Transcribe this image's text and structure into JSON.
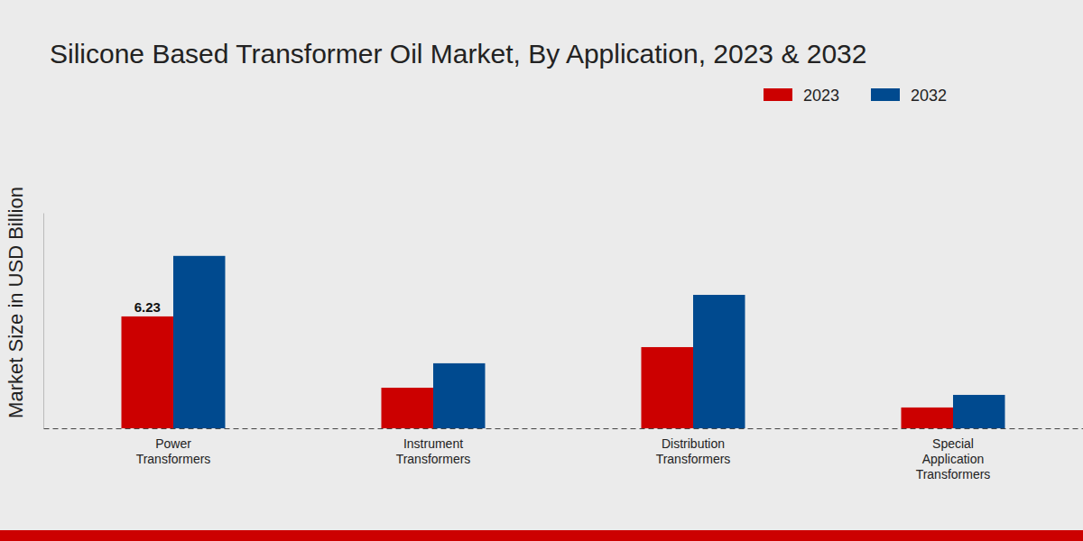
{
  "chart_data": {
    "type": "bar",
    "title": "Silicone Based Transformer Oil Market, By Application, 2023 & 2032",
    "y_label": "Market Size in USD Billion",
    "categories": [
      "Power Transformers",
      "Instrument Transformers",
      "Distribution Transformers",
      "Special Application Transformers"
    ],
    "series": [
      {
        "name": "2023",
        "color": "#cc0000",
        "values": [
          6.23,
          2.26,
          4.52,
          1.16
        ],
        "value_labels": [
          "6.23",
          null,
          null,
          null
        ]
      },
      {
        "name": "2032",
        "color": "#004a8f",
        "values": [
          9.6,
          3.62,
          7.43,
          1.86
        ]
      }
    ],
    "ylim": [
      0,
      12
    ],
    "yticks": [],
    "grid": false,
    "legend": "top-right",
    "tick_labels": "x"
  }
}
